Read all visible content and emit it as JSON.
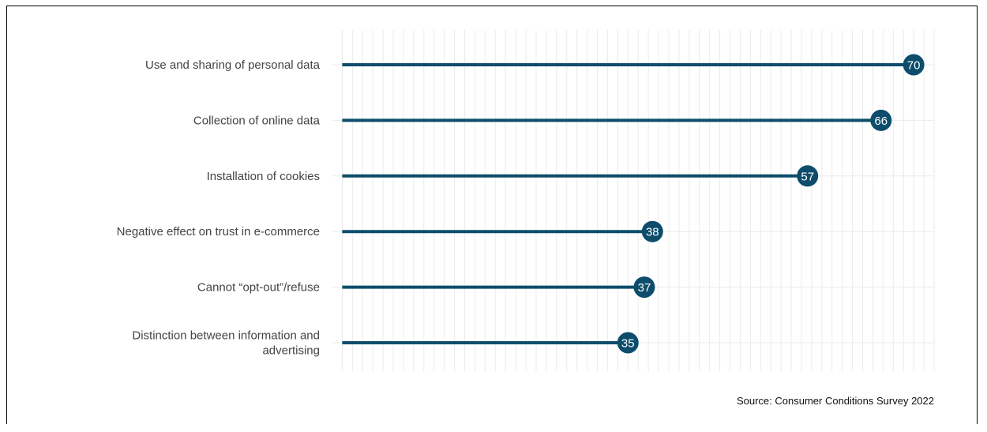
{
  "chart_data": {
    "type": "lollipop",
    "categories": [
      "Use and sharing of personal data",
      "Collection of online data",
      "Installation of cookies",
      "Negative effect on trust in e-commerce",
      "Cannot “opt-out”/refuse",
      "Distinction between information and advertising"
    ],
    "category_lines": [
      [
        "Use and sharing of personal data"
      ],
      [
        "Collection of online data"
      ],
      [
        "Installation of cookies"
      ],
      [
        "Negative effect on trust in e-commerce"
      ],
      [
        "Cannot “opt-out”/refuse"
      ],
      [
        "Distinction between information and",
        "advertising"
      ]
    ],
    "values": [
      70,
      66,
      57,
      38,
      37,
      35
    ],
    "value_labels": [
      "70",
      "66",
      "57",
      "38",
      "37",
      "35"
    ],
    "xlim": [
      -1.2,
      72.5
    ],
    "grid": true,
    "colors": {
      "series": "#0d4d6b",
      "grid": "#ebebeb"
    },
    "caption": "Source: Consumer Conditions Survey 2022"
  }
}
